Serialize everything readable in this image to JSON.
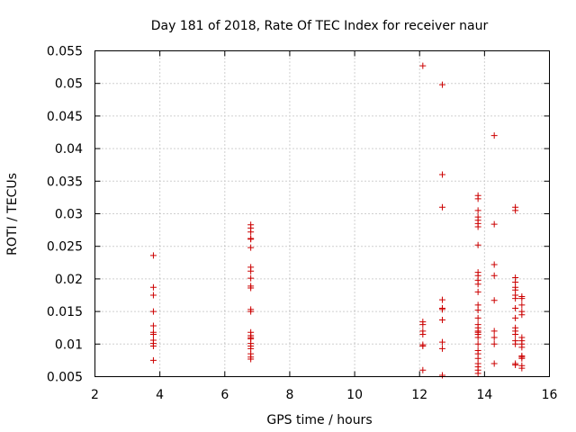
{
  "chart_data": {
    "type": "scatter",
    "title": "Day 181 of 2018, Rate Of TEC Index for receiver naur",
    "xlabel": "GPS time / hours",
    "ylabel": "ROTI / TECUs",
    "xlim": [
      2,
      16
    ],
    "ylim": [
      0.005,
      0.055
    ],
    "xticks": [
      2,
      4,
      6,
      8,
      10,
      12,
      14,
      16
    ],
    "xtick_labels": [
      "2",
      "4",
      "6",
      "8",
      "10",
      "12",
      "14",
      "16"
    ],
    "yticks": [
      0.005,
      0.01,
      0.015,
      0.02,
      0.025,
      0.03,
      0.035,
      0.04,
      0.045,
      0.05,
      0.055
    ],
    "ytick_labels": [
      "0.005",
      "0.01",
      "0.015",
      "0.02",
      "0.025",
      "0.03",
      "0.035",
      "0.04",
      "0.045",
      "0.05",
      "0.055"
    ],
    "grid": true,
    "marker": "+",
    "marker_color": "#cc0000",
    "series": [
      {
        "name": "ROTI",
        "points": [
          [
            3.8,
            0.0236
          ],
          [
            3.8,
            0.0187
          ],
          [
            3.8,
            0.0175
          ],
          [
            3.8,
            0.015
          ],
          [
            3.8,
            0.0128
          ],
          [
            3.8,
            0.0118
          ],
          [
            3.8,
            0.0115
          ],
          [
            3.8,
            0.0106
          ],
          [
            3.8,
            0.0101
          ],
          [
            3.8,
            0.0097
          ],
          [
            3.8,
            0.0075
          ],
          [
            6.8,
            0.0283
          ],
          [
            6.8,
            0.0278
          ],
          [
            6.8,
            0.0272
          ],
          [
            6.8,
            0.0262
          ],
          [
            6.8,
            0.0261
          ],
          [
            6.8,
            0.0248
          ],
          [
            6.8,
            0.0218
          ],
          [
            6.8,
            0.0212
          ],
          [
            6.8,
            0.0201
          ],
          [
            6.8,
            0.0189
          ],
          [
            6.8,
            0.0186
          ],
          [
            6.8,
            0.0153
          ],
          [
            6.8,
            0.015
          ],
          [
            6.8,
            0.0118
          ],
          [
            6.8,
            0.0113
          ],
          [
            6.8,
            0.011
          ],
          [
            6.8,
            0.0108
          ],
          [
            6.8,
            0.0101
          ],
          [
            6.8,
            0.0097
          ],
          [
            6.8,
            0.0093
          ],
          [
            6.8,
            0.0085
          ],
          [
            6.8,
            0.008
          ],
          [
            6.8,
            0.0077
          ],
          [
            12.1,
            0.0527
          ],
          [
            12.1,
            0.0134
          ],
          [
            12.1,
            0.013
          ],
          [
            12.1,
            0.012
          ],
          [
            12.1,
            0.0115
          ],
          [
            12.1,
            0.0099
          ],
          [
            12.1,
            0.0097
          ],
          [
            12.1,
            0.006
          ],
          [
            12.7,
            0.0498
          ],
          [
            12.7,
            0.036
          ],
          [
            12.7,
            0.031
          ],
          [
            12.7,
            0.0168
          ],
          [
            12.7,
            0.0155
          ],
          [
            12.7,
            0.0153
          ],
          [
            12.7,
            0.0137
          ],
          [
            12.7,
            0.0103
          ],
          [
            12.7,
            0.0093
          ],
          [
            12.7,
            0.0052
          ],
          [
            13.8,
            0.0328
          ],
          [
            13.8,
            0.0323
          ],
          [
            13.8,
            0.0305
          ],
          [
            13.8,
            0.0295
          ],
          [
            13.8,
            0.029
          ],
          [
            13.8,
            0.0285
          ],
          [
            13.8,
            0.028
          ],
          [
            13.8,
            0.0252
          ],
          [
            13.8,
            0.021
          ],
          [
            13.8,
            0.0205
          ],
          [
            13.8,
            0.0198
          ],
          [
            13.8,
            0.0192
          ],
          [
            13.8,
            0.018
          ],
          [
            13.8,
            0.016
          ],
          [
            13.8,
            0.0152
          ],
          [
            13.8,
            0.014
          ],
          [
            13.8,
            0.013
          ],
          [
            13.8,
            0.0125
          ],
          [
            13.8,
            0.012
          ],
          [
            13.8,
            0.0118
          ],
          [
            13.8,
            0.0115
          ],
          [
            13.8,
            0.011
          ],
          [
            13.8,
            0.01
          ],
          [
            13.8,
            0.009
          ],
          [
            13.8,
            0.0085
          ],
          [
            13.8,
            0.0078
          ],
          [
            13.8,
            0.007
          ],
          [
            13.8,
            0.0065
          ],
          [
            13.8,
            0.006
          ],
          [
            13.8,
            0.0055
          ],
          [
            14.3,
            0.042
          ],
          [
            14.3,
            0.0284
          ],
          [
            14.3,
            0.0222
          ],
          [
            14.3,
            0.0205
          ],
          [
            14.3,
            0.0167
          ],
          [
            14.3,
            0.012
          ],
          [
            14.3,
            0.011
          ],
          [
            14.3,
            0.01
          ],
          [
            14.3,
            0.007
          ],
          [
            14.95,
            0.031
          ],
          [
            14.95,
            0.0305
          ],
          [
            14.95,
            0.0202
          ],
          [
            14.95,
            0.0195
          ],
          [
            14.95,
            0.0187
          ],
          [
            14.95,
            0.0183
          ],
          [
            14.95,
            0.0175
          ],
          [
            14.95,
            0.017
          ],
          [
            14.95,
            0.0155
          ],
          [
            14.95,
            0.014
          ],
          [
            14.95,
            0.0125
          ],
          [
            14.95,
            0.012
          ],
          [
            14.95,
            0.0115
          ],
          [
            14.95,
            0.0105
          ],
          [
            14.95,
            0.01
          ],
          [
            14.95,
            0.007
          ],
          [
            14.95,
            0.0068
          ],
          [
            15.15,
            0.0173
          ],
          [
            15.15,
            0.017
          ],
          [
            15.15,
            0.016
          ],
          [
            15.15,
            0.015
          ],
          [
            15.15,
            0.0145
          ],
          [
            15.15,
            0.011
          ],
          [
            15.15,
            0.0105
          ],
          [
            15.15,
            0.01
          ],
          [
            15.15,
            0.0095
          ],
          [
            15.15,
            0.0082
          ],
          [
            15.15,
            0.008
          ],
          [
            15.15,
            0.0078
          ],
          [
            15.15,
            0.0067
          ],
          [
            15.15,
            0.0063
          ]
        ]
      }
    ]
  }
}
